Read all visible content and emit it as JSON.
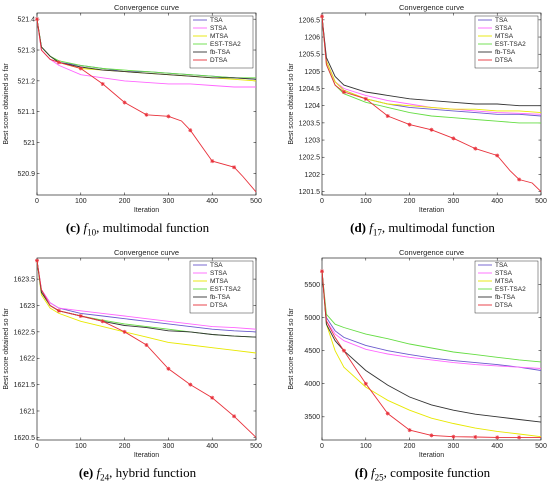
{
  "colors": {
    "TSA": "#6a5acd",
    "STSA": "#ff66ff",
    "MTSA": "#e8e800",
    "EST-TSA2": "#66dd44",
    "fb-TSA": "#333333",
    "DTSA": "#e8303a"
  },
  "chart_data": [
    {
      "type": "line",
      "title": "Convergence curve",
      "xlabel": "Iteration",
      "ylabel": "Best score obtained so far",
      "xlim": [
        0,
        500
      ],
      "ylim": [
        520.83,
        521.42
      ],
      "xticks": [
        0,
        100,
        200,
        300,
        400,
        500
      ],
      "yticks": [
        520.9,
        521,
        521.1,
        521.2,
        521.3,
        521.4
      ],
      "legend": "top-right",
      "caption": {
        "letter": "(c)",
        "f": "f",
        "sub": "10",
        "text": ", multimodal function"
      },
      "series": [
        {
          "name": "TSA",
          "x": [
            0,
            10,
            30,
            50,
            100,
            150,
            200,
            250,
            300,
            350,
            400,
            450,
            500
          ],
          "y": [
            521.4,
            521.31,
            521.28,
            521.26,
            521.25,
            521.24,
            521.23,
            521.23,
            521.225,
            521.22,
            521.215,
            521.21,
            521.205
          ]
        },
        {
          "name": "STSA",
          "x": [
            0,
            10,
            30,
            50,
            100,
            150,
            200,
            250,
            300,
            350,
            400,
            450,
            500
          ],
          "y": [
            521.4,
            521.3,
            521.27,
            521.25,
            521.22,
            521.21,
            521.2,
            521.195,
            521.19,
            521.19,
            521.185,
            521.18,
            521.18
          ]
        },
        {
          "name": "MTSA",
          "x": [
            0,
            10,
            30,
            50,
            100,
            150,
            200,
            250,
            300,
            350,
            400,
            450,
            500
          ],
          "y": [
            521.4,
            521.31,
            521.28,
            521.26,
            521.24,
            521.235,
            521.23,
            521.225,
            521.22,
            521.215,
            521.21,
            521.205,
            521.2
          ]
        },
        {
          "name": "EST-TSA2",
          "x": [
            0,
            10,
            30,
            50,
            100,
            150,
            200,
            250,
            300,
            350,
            400,
            450,
            500
          ],
          "y": [
            521.4,
            521.31,
            521.28,
            521.265,
            521.25,
            521.24,
            521.235,
            521.23,
            521.225,
            521.22,
            521.215,
            521.21,
            521.21
          ]
        },
        {
          "name": "fb-TSA",
          "x": [
            0,
            10,
            30,
            50,
            100,
            150,
            200,
            250,
            300,
            350,
            400,
            450,
            500
          ],
          "y": [
            521.4,
            521.31,
            521.28,
            521.26,
            521.245,
            521.235,
            521.23,
            521.225,
            521.22,
            521.215,
            521.21,
            521.21,
            521.205
          ]
        },
        {
          "name": "DTSA",
          "x": [
            0,
            10,
            30,
            50,
            100,
            150,
            200,
            250,
            300,
            330,
            350,
            380,
            400,
            450,
            470,
            500
          ],
          "y": [
            521.4,
            521.3,
            521.27,
            521.26,
            521.24,
            521.19,
            521.13,
            521.09,
            521.085,
            521.07,
            521.04,
            520.98,
            520.94,
            520.92,
            520.89,
            520.84
          ],
          "markers": [
            0,
            50,
            100,
            150,
            200,
            250,
            300,
            350,
            400,
            450
          ]
        }
      ]
    },
    {
      "type": "line",
      "title": "Convergence curve",
      "xlabel": "Iteration",
      "ylabel": "Best score obtained so far",
      "xlim": [
        0,
        500
      ],
      "ylim": [
        1201.4,
        1206.7
      ],
      "xticks": [
        0,
        100,
        200,
        300,
        400,
        500
      ],
      "yticks": [
        1201.5,
        1202,
        1202.5,
        1203,
        1203.5,
        1204,
        1204.5,
        1205,
        1205.5,
        1206,
        1206.5
      ],
      "legend": "top-right",
      "caption": {
        "letter": "(d)",
        "f": "f",
        "sub": "17",
        "text": ", multimodal function"
      },
      "series": [
        {
          "name": "TSA",
          "x": [
            0,
            10,
            30,
            50,
            100,
            150,
            200,
            250,
            300,
            350,
            400,
            450,
            500
          ],
          "y": [
            1206.6,
            1205.3,
            1204.7,
            1204.45,
            1204.2,
            1204.05,
            1203.95,
            1203.9,
            1203.85,
            1203.8,
            1203.75,
            1203.75,
            1203.7
          ]
        },
        {
          "name": "STSA",
          "x": [
            0,
            10,
            30,
            50,
            100,
            150,
            200,
            250,
            300,
            350,
            400,
            450,
            500
          ],
          "y": [
            1206.6,
            1205.3,
            1204.7,
            1204.5,
            1204.3,
            1204.15,
            1204.05,
            1203.95,
            1203.9,
            1203.85,
            1203.8,
            1203.78,
            1203.75
          ]
        },
        {
          "name": "MTSA",
          "x": [
            0,
            10,
            30,
            50,
            100,
            150,
            200,
            250,
            300,
            350,
            400,
            450,
            500
          ],
          "y": [
            1206.6,
            1205.3,
            1204.7,
            1204.45,
            1204.2,
            1204.05,
            1204.0,
            1203.95,
            1203.9,
            1203.9,
            1203.85,
            1203.85,
            1203.8
          ]
        },
        {
          "name": "EST-TSA2",
          "x": [
            0,
            10,
            30,
            50,
            100,
            150,
            200,
            250,
            300,
            350,
            400,
            450,
            500
          ],
          "y": [
            1206.6,
            1205.2,
            1204.6,
            1204.35,
            1204.1,
            1203.95,
            1203.8,
            1203.7,
            1203.65,
            1203.6,
            1203.55,
            1203.5,
            1203.5
          ]
        },
        {
          "name": "fb-TSA",
          "x": [
            0,
            10,
            30,
            50,
            100,
            150,
            200,
            250,
            300,
            350,
            400,
            450,
            500
          ],
          "y": [
            1206.6,
            1205.4,
            1204.85,
            1204.6,
            1204.4,
            1204.3,
            1204.2,
            1204.15,
            1204.1,
            1204.05,
            1204.05,
            1204.0,
            1204.0
          ]
        },
        {
          "name": "DTSA",
          "x": [
            0,
            10,
            30,
            50,
            100,
            150,
            200,
            250,
            300,
            350,
            400,
            430,
            450,
            480,
            500
          ],
          "y": [
            1206.6,
            1205.2,
            1204.6,
            1204.4,
            1204.2,
            1203.7,
            1203.45,
            1203.3,
            1203.05,
            1202.75,
            1202.55,
            1202.1,
            1201.85,
            1201.75,
            1201.5
          ],
          "markers": [
            0,
            50,
            100,
            150,
            200,
            250,
            300,
            350,
            400,
            450
          ]
        }
      ]
    },
    {
      "type": "line",
      "title": "Convergence curve",
      "xlabel": "Iteration",
      "ylabel": "Best score obtained so far",
      "xlim": [
        0,
        500
      ],
      "ylim": [
        1620.45,
        1623.9
      ],
      "xticks": [
        0,
        100,
        200,
        300,
        400,
        500
      ],
      "yticks": [
        1620.5,
        1621,
        1621.5,
        1622,
        1622.5,
        1623,
        1623.5
      ],
      "legend": "top-right",
      "caption": {
        "letter": "(e)",
        "f": "f",
        "sub": "24",
        "text": ", hybrid function"
      },
      "series": [
        {
          "name": "TSA",
          "x": [
            0,
            10,
            30,
            50,
            100,
            150,
            200,
            250,
            300,
            350,
            400,
            450,
            500
          ],
          "y": [
            1623.85,
            1623.3,
            1623.05,
            1622.95,
            1622.85,
            1622.8,
            1622.75,
            1622.7,
            1622.65,
            1622.6,
            1622.55,
            1622.52,
            1622.5
          ]
        },
        {
          "name": "STSA",
          "x": [
            0,
            10,
            30,
            50,
            100,
            150,
            200,
            250,
            300,
            350,
            400,
            450,
            500
          ],
          "y": [
            1623.85,
            1623.3,
            1623.05,
            1622.95,
            1622.9,
            1622.85,
            1622.8,
            1622.75,
            1622.7,
            1622.65,
            1622.6,
            1622.58,
            1622.55
          ]
        },
        {
          "name": "MTSA",
          "x": [
            0,
            10,
            30,
            50,
            100,
            150,
            200,
            250,
            300,
            350,
            400,
            450,
            500
          ],
          "y": [
            1623.85,
            1623.2,
            1622.95,
            1622.85,
            1622.7,
            1622.6,
            1622.5,
            1622.4,
            1622.3,
            1622.25,
            1622.2,
            1622.15,
            1622.1
          ]
        },
        {
          "name": "EST-TSA2",
          "x": [
            0,
            10,
            30,
            50,
            100,
            150,
            200,
            250,
            300,
            350,
            400,
            450,
            500
          ],
          "y": [
            1623.85,
            1623.25,
            1623.0,
            1622.9,
            1622.8,
            1622.72,
            1622.65,
            1622.6,
            1622.55,
            1622.5,
            1622.45,
            1622.42,
            1622.4
          ]
        },
        {
          "name": "fb-TSA",
          "x": [
            0,
            10,
            30,
            50,
            100,
            150,
            200,
            250,
            300,
            350,
            400,
            450,
            500
          ],
          "y": [
            1623.85,
            1623.25,
            1623.0,
            1622.9,
            1622.8,
            1622.7,
            1622.62,
            1622.58,
            1622.52,
            1622.5,
            1622.45,
            1622.42,
            1622.4
          ]
        },
        {
          "name": "DTSA",
          "x": [
            0,
            10,
            30,
            50,
            100,
            150,
            200,
            250,
            300,
            350,
            400,
            450,
            500
          ],
          "y": [
            1623.85,
            1623.3,
            1623.0,
            1622.9,
            1622.8,
            1622.7,
            1622.5,
            1622.25,
            1621.8,
            1621.5,
            1621.25,
            1620.9,
            1620.5
          ],
          "markers": [
            0,
            50,
            100,
            150,
            200,
            250,
            300,
            350,
            400,
            450
          ]
        }
      ]
    },
    {
      "type": "line",
      "title": "Convergence curve",
      "xlabel": "Iteration",
      "ylabel": "Best score obtained so far",
      "xlim": [
        0,
        500
      ],
      "ylim": [
        3150,
        5900
      ],
      "xticks": [
        0,
        100,
        200,
        300,
        400,
        500
      ],
      "yticks": [
        3500,
        4000,
        4500,
        5000,
        5500
      ],
      "legend": "top-right",
      "caption": {
        "letter": "(f)",
        "f": "f",
        "sub": "25",
        "text": ", composite function"
      },
      "series": [
        {
          "name": "TSA",
          "x": [
            0,
            10,
            30,
            50,
            100,
            150,
            200,
            250,
            300,
            350,
            400,
            450,
            500
          ],
          "y": [
            5700,
            5000,
            4800,
            4700,
            4580,
            4500,
            4440,
            4390,
            4350,
            4320,
            4290,
            4250,
            4200
          ]
        },
        {
          "name": "STSA",
          "x": [
            0,
            10,
            30,
            50,
            100,
            150,
            200,
            250,
            300,
            350,
            400,
            450,
            500
          ],
          "y": [
            5700,
            4950,
            4750,
            4650,
            4520,
            4450,
            4400,
            4360,
            4320,
            4290,
            4270,
            4250,
            4230
          ]
        },
        {
          "name": "MTSA",
          "x": [
            0,
            10,
            30,
            50,
            100,
            150,
            200,
            250,
            300,
            350,
            400,
            450,
            500
          ],
          "y": [
            5700,
            4900,
            4500,
            4250,
            3950,
            3750,
            3600,
            3480,
            3400,
            3330,
            3280,
            3240,
            3200
          ]
        },
        {
          "name": "EST-TSA2",
          "x": [
            0,
            10,
            30,
            50,
            100,
            150,
            200,
            250,
            300,
            350,
            400,
            450,
            500
          ],
          "y": [
            5700,
            5050,
            4900,
            4850,
            4750,
            4680,
            4600,
            4540,
            4480,
            4440,
            4400,
            4360,
            4330
          ]
        },
        {
          "name": "fb-TSA",
          "x": [
            0,
            10,
            30,
            50,
            100,
            150,
            200,
            250,
            300,
            350,
            400,
            450,
            500
          ],
          "y": [
            5700,
            4900,
            4650,
            4500,
            4200,
            3980,
            3800,
            3680,
            3600,
            3540,
            3500,
            3460,
            3420
          ]
        },
        {
          "name": "DTSA",
          "x": [
            0,
            10,
            30,
            50,
            100,
            150,
            200,
            250,
            300,
            350,
            400,
            450,
            500
          ],
          "y": [
            5700,
            4950,
            4700,
            4500,
            4000,
            3550,
            3300,
            3220,
            3200,
            3195,
            3190,
            3190,
            3190
          ],
          "markers": [
            0,
            50,
            100,
            150,
            200,
            250,
            300,
            350,
            400,
            450
          ]
        }
      ]
    }
  ]
}
